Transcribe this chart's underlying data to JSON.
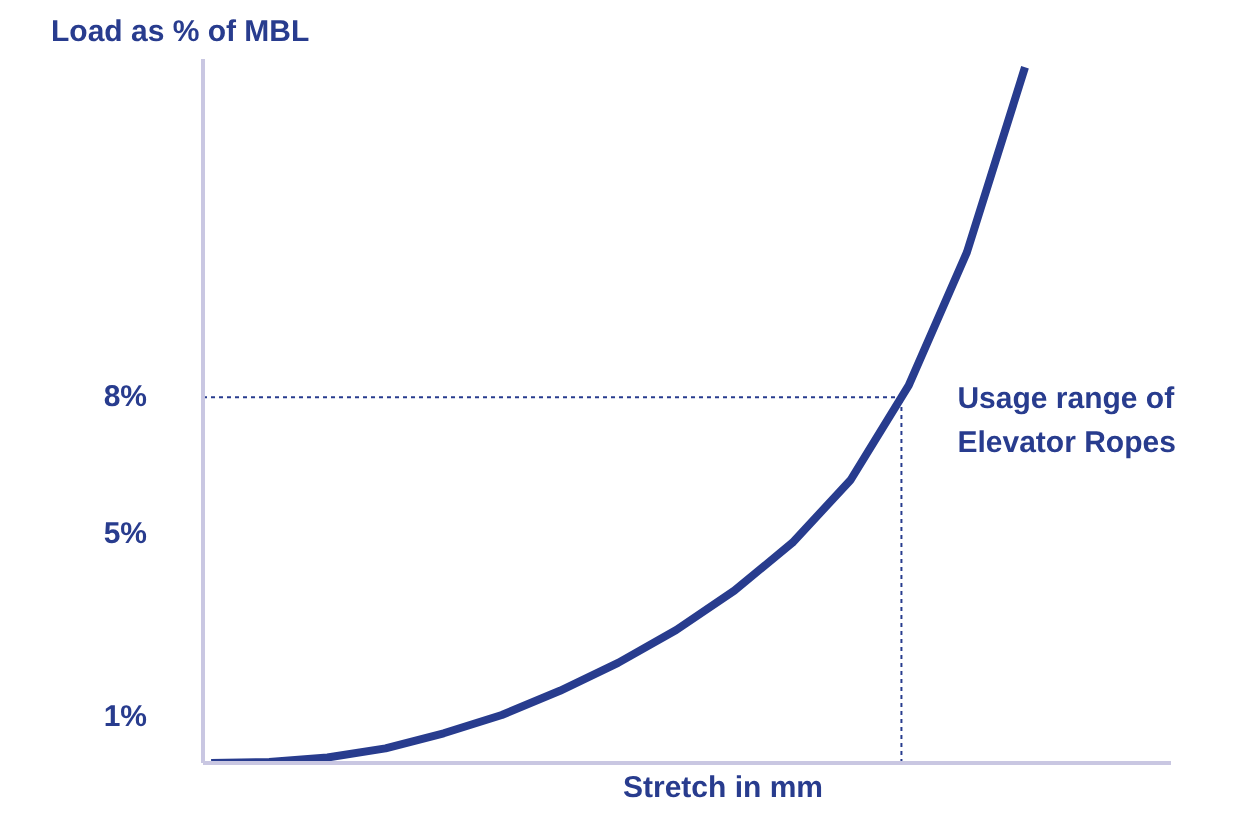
{
  "chart_data": {
    "type": "line",
    "ylabel": "Load as % of MBL",
    "xlabel": "Stretch in mm",
    "categories": [
      null,
      null,
      null,
      null,
      null,
      null,
      null,
      null,
      null,
      null,
      null,
      null,
      null,
      null,
      null
    ],
    "series": [
      {
        "color": "#283c8e",
        "values": [
          0,
          0.02,
          0.12,
          0.32,
          0.65,
          1.05,
          1.58,
          2.19,
          2.91,
          3.77,
          4.82,
          6.19,
          8.26,
          11.17,
          15.22
        ]
      }
    ],
    "ylim": [
      0,
      15.4
    ],
    "yticks": [
      {
        "value": 1,
        "label": "1%"
      },
      {
        "value": 5,
        "label": "5%"
      },
      {
        "value": 8,
        "label": "8%"
      }
    ],
    "tick_labels": "y",
    "grid": false,
    "marker": "none",
    "line_style": "solid",
    "ref_lines": [
      {
        "axis": "y",
        "value": 8,
        "color": "#283c8e",
        "line_style": "dotted"
      }
    ],
    "annotations": [
      "Usage range of\nElevator Ropes"
    ]
  }
}
